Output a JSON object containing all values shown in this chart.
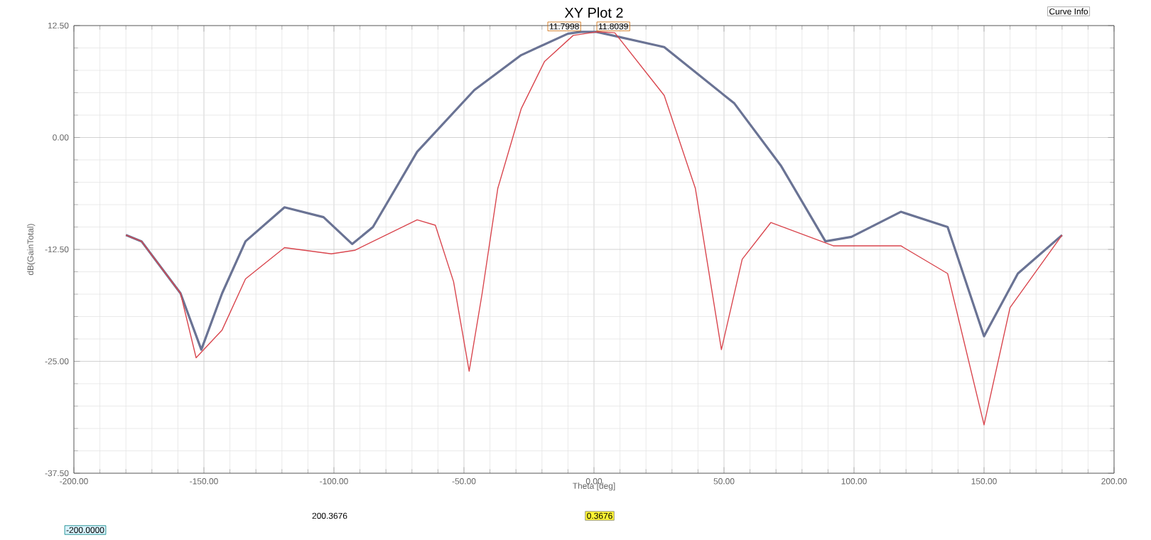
{
  "chart_data": {
    "type": "line",
    "title": "XY Plot 2",
    "xlabel": "Theta [deg]",
    "ylabel": "dB(GainTotal)",
    "xlim": [
      -200,
      200
    ],
    "ylim": [
      -37.5,
      12.5
    ],
    "xticks": [
      {
        "value": -200,
        "label": "-200.00"
      },
      {
        "value": -150,
        "label": "-150.00"
      },
      {
        "value": -100,
        "label": "-100.00"
      },
      {
        "value": -50,
        "label": "-50.00"
      },
      {
        "value": 0,
        "label": "0.00"
      },
      {
        "value": 50,
        "label": "50.00"
      },
      {
        "value": 100,
        "label": "100.00"
      },
      {
        "value": 150,
        "label": "150.00"
      },
      {
        "value": 200,
        "label": "200.00"
      }
    ],
    "yticks": [
      {
        "value": -37.5,
        "label": "-37.50"
      },
      {
        "value": -25,
        "label": "-25.00"
      },
      {
        "value": -12.5,
        "label": "-12.50"
      },
      {
        "value": 0,
        "label": "0.00"
      },
      {
        "value": 12.5,
        "label": "12.50"
      }
    ],
    "grid": true,
    "marker": "none",
    "line_style": "solid",
    "series": [
      {
        "color": "#6a7394",
        "x": [
          -180,
          -174,
          -159,
          -151,
          -143,
          -134,
          -119,
          -104,
          -93,
          -85,
          -68,
          -46,
          -28,
          -10,
          -5,
          1,
          27,
          54,
          72,
          89,
          99,
          118,
          136,
          150,
          163,
          180
        ],
        "values": [
          -10.9,
          -11.6,
          -17.4,
          -23.7,
          -17.4,
          -11.6,
          -7.8,
          -8.9,
          -11.9,
          -10.0,
          -1.6,
          5.3,
          9.2,
          11.6,
          11.8,
          11.8,
          10.1,
          3.8,
          -3.2,
          -11.6,
          -11.1,
          -8.3,
          -10.0,
          -22.2,
          -15.2,
          -10.9
        ]
      },
      {
        "color": "#d9464e",
        "x": [
          -180,
          -174,
          -159,
          -153,
          -143,
          -134,
          -119,
          -101,
          -92,
          -68,
          -61,
          -54,
          -48,
          -43,
          -37,
          -28,
          -19,
          -8,
          1,
          8,
          27,
          39,
          49,
          57,
          68,
          92,
          118,
          136,
          150,
          160,
          180
        ],
        "values": [
          -10.9,
          -11.6,
          -17.4,
          -24.6,
          -21.5,
          -15.8,
          -12.3,
          -13.0,
          -12.6,
          -9.2,
          -9.8,
          -16.1,
          -26.1,
          -17.4,
          -5.7,
          3.2,
          8.5,
          11.4,
          11.8,
          11.7,
          4.7,
          -5.7,
          -23.7,
          -13.6,
          -9.5,
          -12.1,
          -12.1,
          -15.2,
          -32.1,
          -19.0,
          -10.9
        ]
      }
    ],
    "annotations": [
      {
        "text": "11.7998",
        "x": -5,
        "y": 11.7998
      },
      {
        "text": "11.8039",
        "x": 1,
        "y": 11.8039
      },
      "Curve Info",
      "-200.0000",
      "200.3676",
      "0.3676"
    ]
  }
}
